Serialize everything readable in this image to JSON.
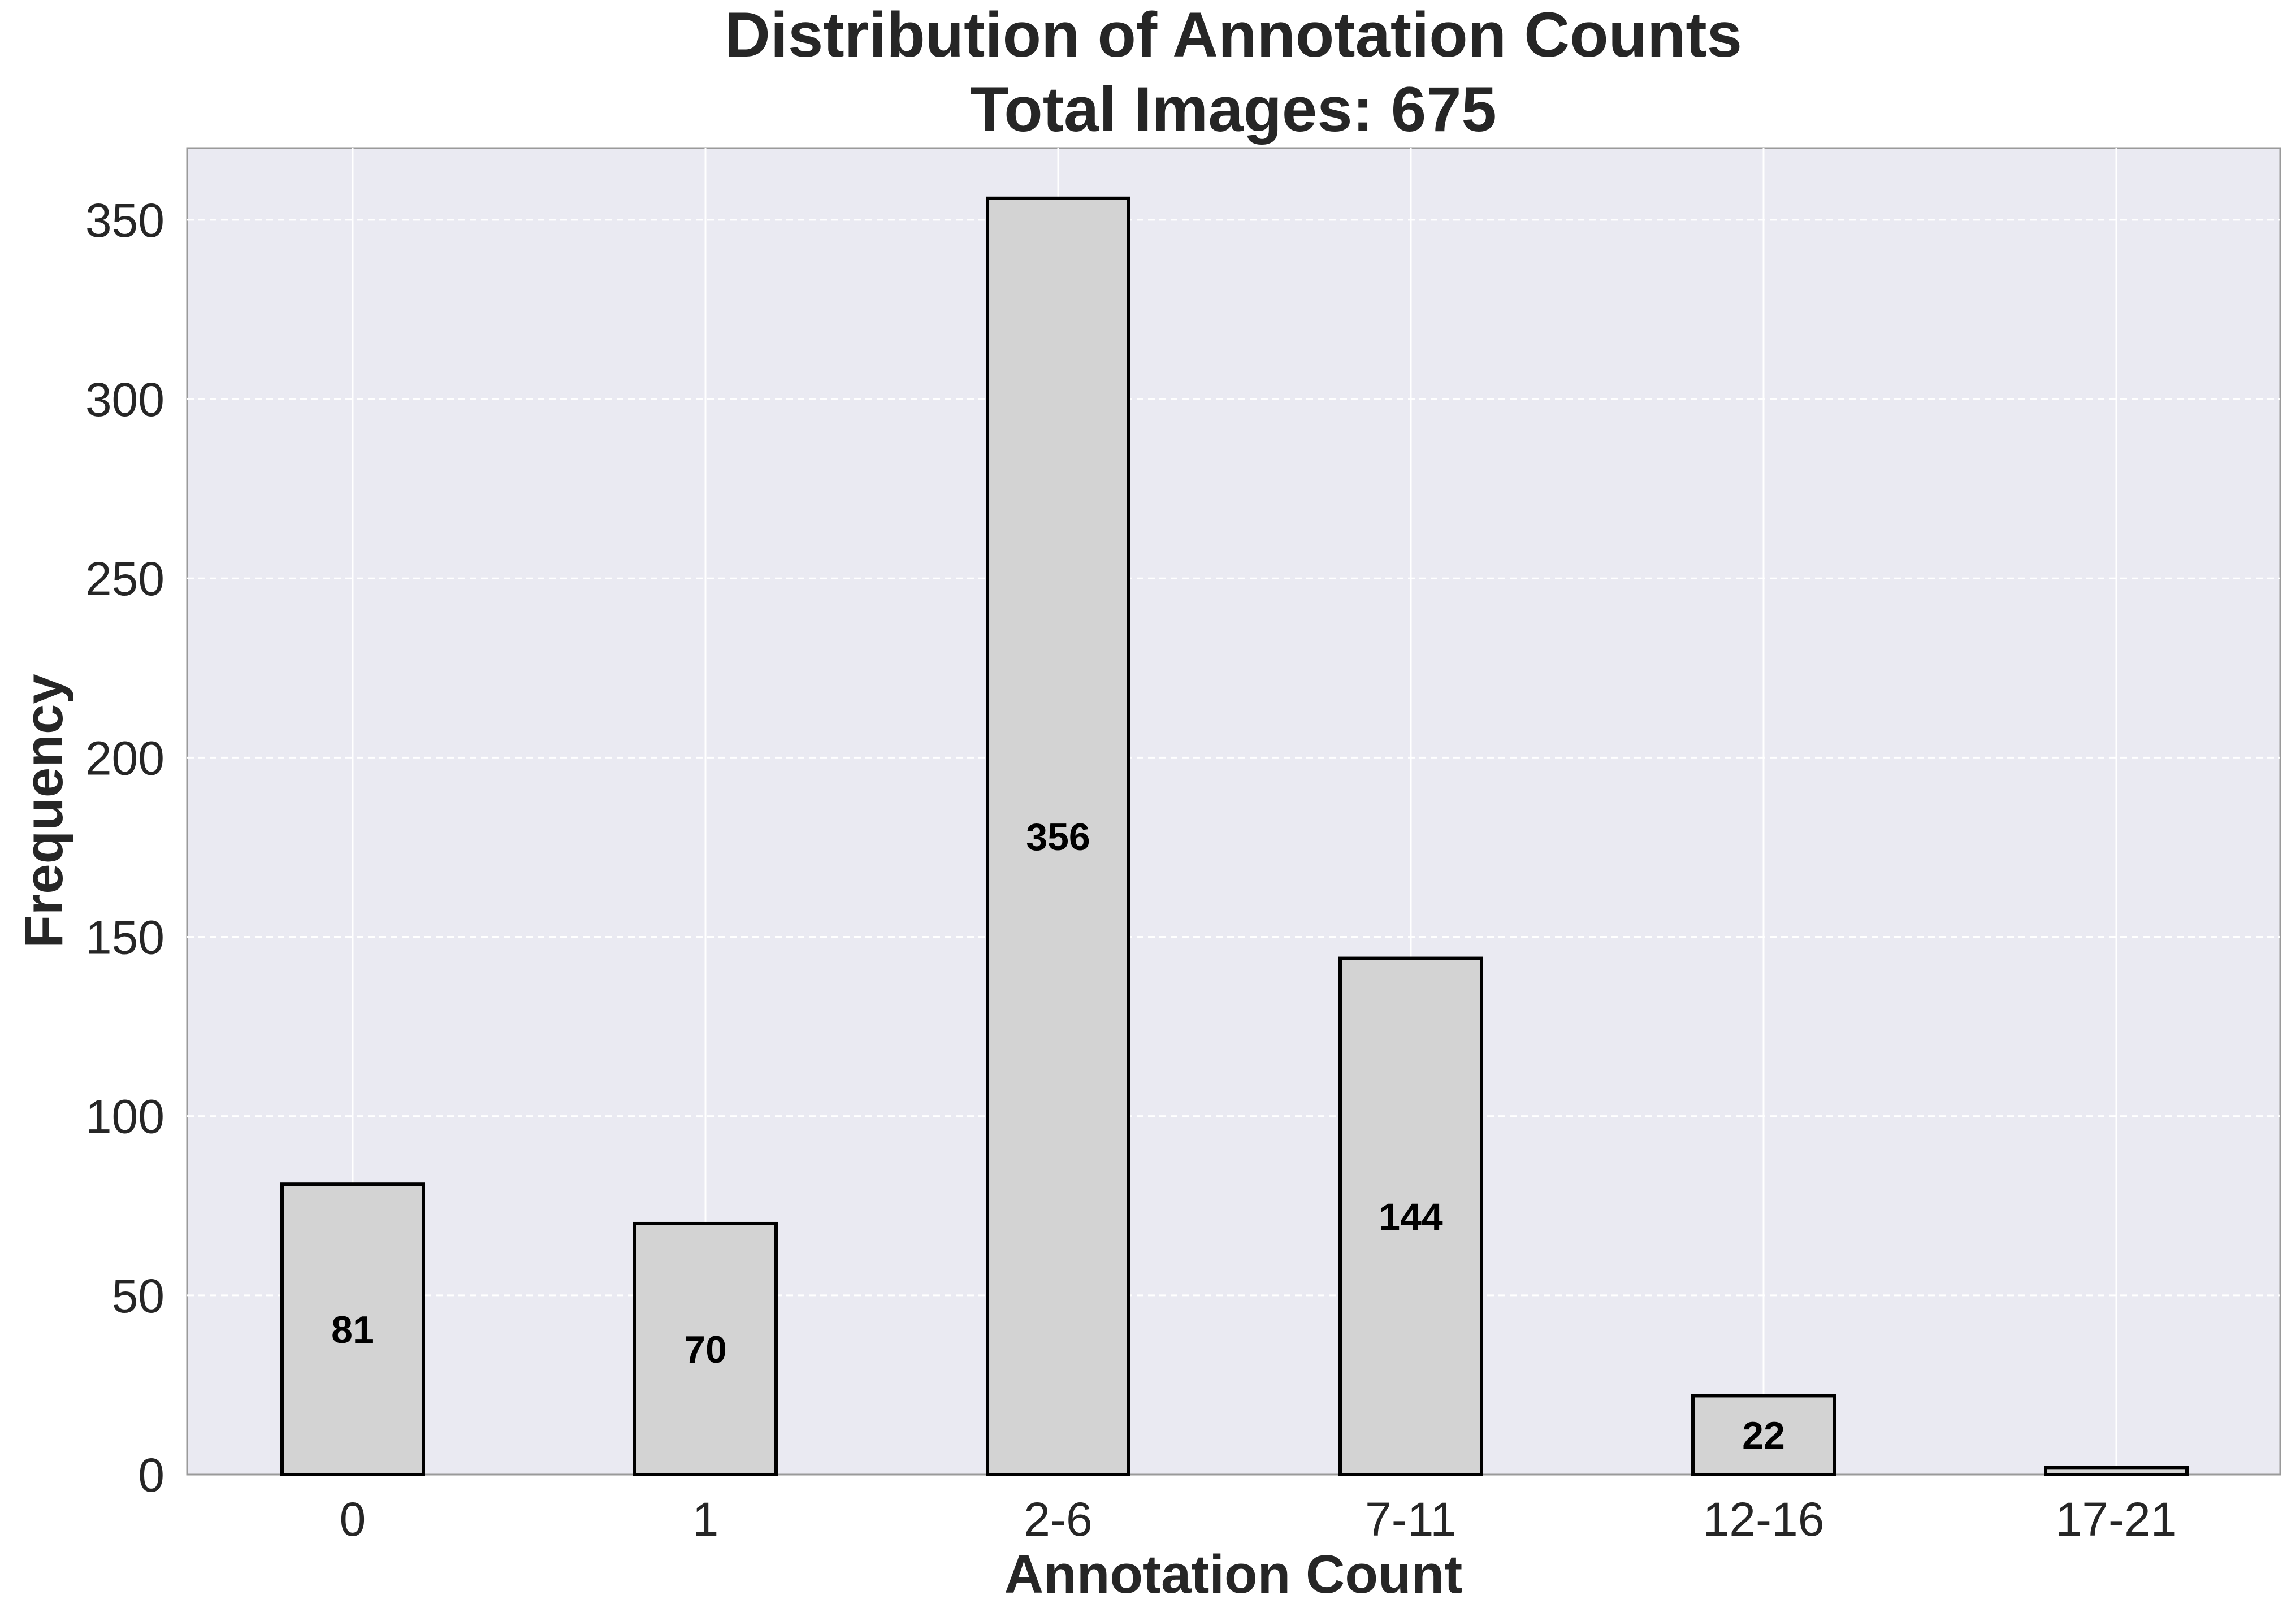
{
  "chart_data": {
    "type": "bar",
    "title": "Distribution of Annotation Counts",
    "subtitle": "Total Images: 675",
    "xlabel": "Annotation Count",
    "ylabel": "Frequency",
    "categories": [
      "0",
      "1",
      "2-6",
      "7-11",
      "12-16",
      "17-21"
    ],
    "values": [
      81,
      70,
      356,
      144,
      22,
      2
    ],
    "value_labels": [
      "81",
      "70",
      "356",
      "144",
      "22",
      ""
    ],
    "ylim": [
      0,
      370
    ],
    "yticks": [
      0,
      50,
      100,
      150,
      200,
      250,
      300,
      350
    ],
    "grid": true,
    "legend": "none",
    "colors": {
      "background": "#eaeaf2",
      "bar_fill": "#d3d3d3",
      "bar_edge": "#000000",
      "grid": "#ffffff",
      "text": "#262626"
    }
  }
}
